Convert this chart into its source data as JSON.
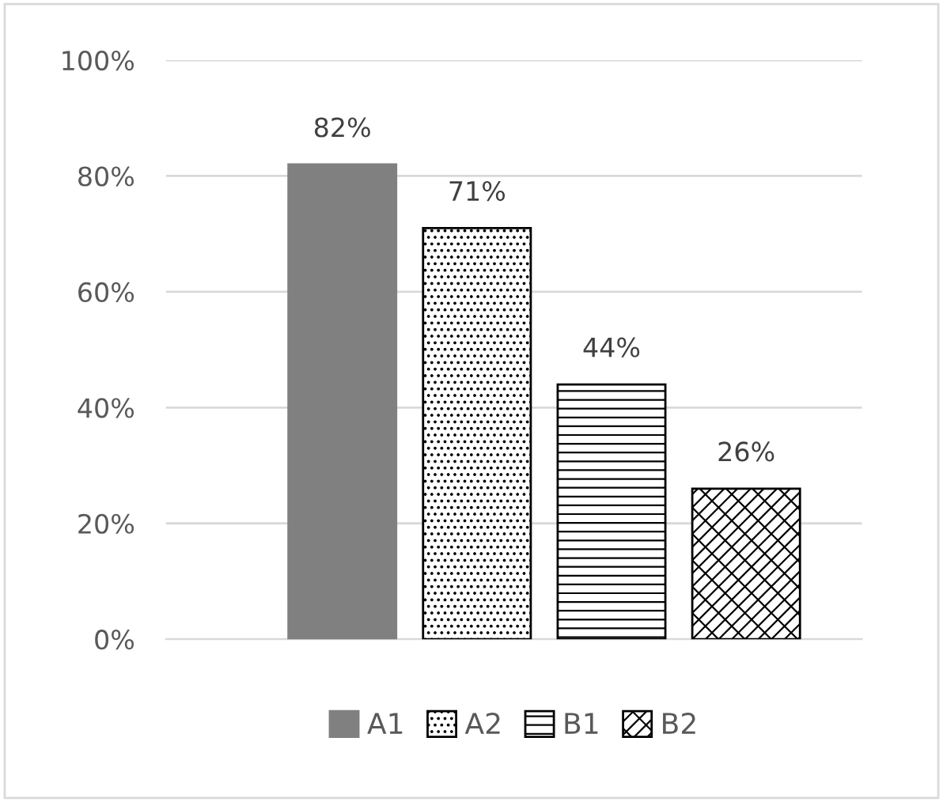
{
  "chart_data": {
    "type": "bar",
    "categories": [
      null
    ],
    "series": [
      {
        "name": "A1",
        "color": "#808080",
        "values": [
          82
        ],
        "value_labels": [
          "82%"
        ]
      },
      {
        "name": "A2",
        "color": "#000000",
        "values": [
          71
        ],
        "value_labels": [
          "71%"
        ]
      },
      {
        "name": "B1",
        "color": "#000000",
        "values": [
          44
        ],
        "value_labels": [
          "44%"
        ]
      },
      {
        "name": "B2",
        "color": "#000000",
        "values": [
          26
        ],
        "value_labels": [
          "26%"
        ]
      }
    ],
    "ylim": [
      0,
      100
    ],
    "yticks": [
      {
        "value": 0,
        "label": "0%"
      },
      {
        "value": 20,
        "label": "20%"
      },
      {
        "value": 40,
        "label": "40%"
      },
      {
        "value": 60,
        "label": "60%"
      },
      {
        "value": 80,
        "label": "80%"
      },
      {
        "value": 100,
        "label": "100%"
      }
    ],
    "grid": "y",
    "legend": "bottom"
  }
}
